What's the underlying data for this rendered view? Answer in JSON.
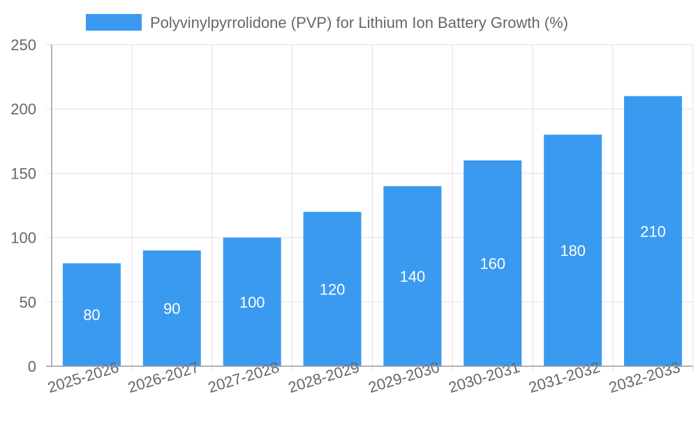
{
  "chart_data": {
    "type": "bar",
    "categories": [
      "2025-2026",
      "2026-2027",
      "2027-2028",
      "2028-2029",
      "2029-2030",
      "2030-2031",
      "2031-2032",
      "2032-2033"
    ],
    "series": [
      {
        "name": "Polyvinylpyrrolidone (PVP) for Lithium Ion Battery Growth (%)",
        "values": [
          80,
          90,
          100,
          120,
          140,
          160,
          180,
          210
        ],
        "color": "#3A9AF0"
      }
    ],
    "ylim": [
      0,
      250
    ],
    "yticks": [
      0,
      50,
      100,
      150,
      200,
      250
    ],
    "grid": true,
    "legend": "top",
    "data_labels": true
  }
}
